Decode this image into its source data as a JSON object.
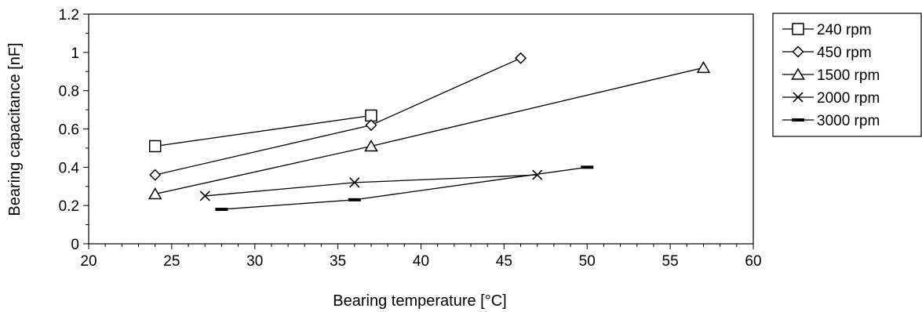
{
  "chart_data": {
    "type": "line",
    "title": "",
    "xlabel": "Bearing temperature [°C]",
    "ylabel": "Bearing capacitance [nF]",
    "xlim": [
      20,
      60
    ],
    "ylim": [
      0,
      1.2
    ],
    "xticks": [
      20,
      25,
      30,
      35,
      40,
      45,
      50,
      55,
      60
    ],
    "yticks": [
      0,
      0.2,
      0.4,
      0.6,
      0.8,
      1,
      1.2
    ],
    "ytick_labels": [
      "0",
      "0.2",
      "0.4",
      "0.6",
      "0.8",
      "1",
      "1.2"
    ],
    "grid": false,
    "legend_position": "right",
    "line_color": "#000000",
    "series": [
      {
        "name": "240 rpm",
        "marker": "square",
        "points": [
          [
            24,
            0.51
          ],
          [
            37,
            0.67
          ]
        ]
      },
      {
        "name": "450 rpm",
        "marker": "diamond",
        "points": [
          [
            24,
            0.36
          ],
          [
            37,
            0.62
          ],
          [
            46,
            0.97
          ]
        ]
      },
      {
        "name": "1500 rpm",
        "marker": "triangle",
        "points": [
          [
            24,
            0.26
          ],
          [
            37,
            0.51
          ],
          [
            57,
            0.92
          ]
        ]
      },
      {
        "name": "2000 rpm",
        "marker": "x",
        "points": [
          [
            27,
            0.25
          ],
          [
            36,
            0.32
          ],
          [
            47,
            0.36
          ]
        ]
      },
      {
        "name": "3000 rpm",
        "marker": "dash",
        "points": [
          [
            28,
            0.18
          ],
          [
            36,
            0.23
          ],
          [
            50,
            0.4
          ]
        ]
      }
    ]
  }
}
